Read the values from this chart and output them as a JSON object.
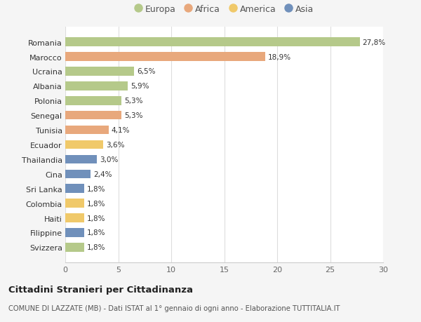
{
  "categories": [
    "Svizzera",
    "Filippine",
    "Haiti",
    "Colombia",
    "Sri Lanka",
    "Cina",
    "Thailandia",
    "Ecuador",
    "Tunisia",
    "Senegal",
    "Polonia",
    "Albania",
    "Ucraina",
    "Marocco",
    "Romania"
  ],
  "values": [
    1.8,
    1.8,
    1.8,
    1.8,
    1.8,
    2.4,
    3.0,
    3.6,
    4.1,
    5.3,
    5.3,
    5.9,
    6.5,
    18.9,
    27.8
  ],
  "colors": [
    "#b5c98a",
    "#7090bb",
    "#f0c96a",
    "#f0c96a",
    "#7090bb",
    "#7090bb",
    "#7090bb",
    "#f0c96a",
    "#e8a87c",
    "#e8a87c",
    "#b5c98a",
    "#b5c98a",
    "#b5c98a",
    "#e8a87c",
    "#b5c98a"
  ],
  "labels": [
    "1,8%",
    "1,8%",
    "1,8%",
    "1,8%",
    "1,8%",
    "2,4%",
    "3,0%",
    "3,6%",
    "4,1%",
    "5,3%",
    "5,3%",
    "5,9%",
    "6,5%",
    "18,9%",
    "27,8%"
  ],
  "legend": [
    {
      "label": "Europa",
      "color": "#b5c98a"
    },
    {
      "label": "Africa",
      "color": "#e8a87c"
    },
    {
      "label": "America",
      "color": "#f0c96a"
    },
    {
      "label": "Asia",
      "color": "#7090bb"
    }
  ],
  "title": "Cittadini Stranieri per Cittadinanza",
  "subtitle": "COMUNE DI LAZZATE (MB) - Dati ISTAT al 1° gennaio di ogni anno - Elaborazione TUTTITALIA.IT",
  "xlim": [
    0,
    30
  ],
  "xticks": [
    0,
    5,
    10,
    15,
    20,
    25,
    30
  ],
  "background_color": "#f5f5f5",
  "plot_bg": "#ffffff"
}
